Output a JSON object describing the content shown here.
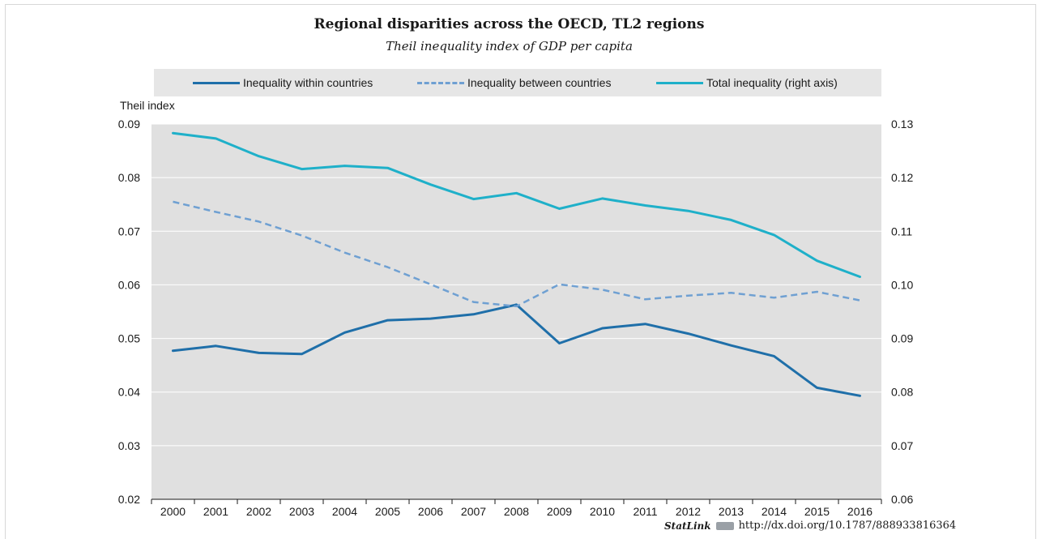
{
  "chart_data": {
    "type": "line",
    "title": "Regional disparities across the OECD, TL2 regions",
    "subtitle": "Theil inequality index of GDP per capita",
    "ylabel": "Theil index",
    "x": [
      "2000",
      "2001",
      "2002",
      "2003",
      "2004",
      "2005",
      "2006",
      "2007",
      "2008",
      "2009",
      "2010",
      "2011",
      "2012",
      "2013",
      "2014",
      "2015",
      "2016"
    ],
    "ylim": [
      0.02,
      0.09
    ],
    "y_ticks": [
      "0.09",
      "0.08",
      "0.07",
      "0.06",
      "0.05",
      "0.04",
      "0.03",
      "0.02"
    ],
    "y2lim": [
      0.06,
      0.13
    ],
    "y2_ticks": [
      "0.13",
      "0.12",
      "0.11",
      "0.10",
      "0.09",
      "0.08",
      "0.07",
      "0.06"
    ],
    "grid": true,
    "legend_position": "top",
    "series": [
      {
        "name": "Inequality within countries",
        "axis": "left",
        "style": "solid",
        "color": "#1f6fa9",
        "values": [
          0.0477,
          0.0486,
          0.0473,
          0.0471,
          0.0511,
          0.0534,
          0.0537,
          0.0545,
          0.0563,
          0.0491,
          0.0519,
          0.0527,
          0.0509,
          0.0487,
          0.0467,
          0.0408,
          0.0393
        ]
      },
      {
        "name": "Inequality between countries",
        "axis": "left",
        "style": "dashed",
        "color": "#6fa0d2",
        "values": [
          0.0755,
          0.0736,
          0.0718,
          0.0692,
          0.066,
          0.0633,
          0.0601,
          0.0568,
          0.056,
          0.0601,
          0.0591,
          0.0573,
          0.058,
          0.0585,
          0.0576,
          0.0587,
          0.0571
        ]
      },
      {
        "name": "Total inequality (right axis)",
        "axis": "right",
        "style": "solid",
        "color": "#1fb0c9",
        "values": [
          0.1283,
          0.1273,
          0.124,
          0.1216,
          0.1222,
          0.1218,
          0.1187,
          0.116,
          0.1171,
          0.1142,
          0.1161,
          0.1148,
          0.1138,
          0.1121,
          0.1093,
          0.1045,
          0.1015
        ]
      }
    ]
  },
  "footer": {
    "statlink": "StatLink",
    "url": "http://dx.doi.org/10.1787/888933816364"
  }
}
